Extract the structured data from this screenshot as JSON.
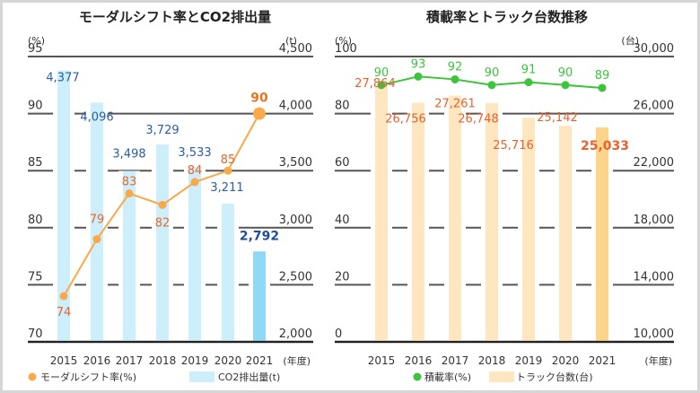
{
  "chart_data": [
    {
      "type": "bar+line",
      "title": "モーダルシフト率とCO2排出量",
      "categories": [
        "2015",
        "2016",
        "2017",
        "2018",
        "2019",
        "2020",
        "2021"
      ],
      "x_unit": "(年度)",
      "left_axis": {
        "unit": "(%)",
        "ylim": [
          70,
          95
        ],
        "ticks": [
          70,
          75,
          80,
          85,
          90,
          95
        ]
      },
      "right_axis": {
        "unit": "(t)",
        "ylim": [
          2000,
          4500
        ],
        "ticks": [
          "2,000",
          "2,500",
          "3,000",
          "3,500",
          "4,000",
          "4,500"
        ],
        "tick_values": [
          2000,
          2500,
          3000,
          3500,
          4000,
          4500
        ]
      },
      "series": [
        {
          "name": "モーダルシフト率(%)",
          "type": "line",
          "axis": "left",
          "values": [
            74,
            79,
            83,
            82,
            84,
            85,
            90
          ],
          "labels": [
            "74",
            "79",
            "83",
            "82",
            "84",
            "85",
            "90"
          ],
          "color": "#f9a94a",
          "label_color": "#e8662a"
        },
        {
          "name": "CO2排出量(t)",
          "type": "bar",
          "axis": "right",
          "values": [
            4377,
            4096,
            3498,
            3729,
            3533,
            3211,
            2792
          ],
          "labels": [
            "4,377",
            "4,096",
            "3,498",
            "3,729",
            "3,533",
            "3,211",
            "2,792"
          ],
          "color": "#cdeefb",
          "highlight_color": "#8fd9f6",
          "label_color": "#2a5caa"
        }
      ],
      "grid": true,
      "legend": "bottom"
    },
    {
      "type": "bar+line",
      "title": "積載率とトラック台数推移",
      "categories": [
        "2015",
        "2016",
        "2017",
        "2018",
        "2019",
        "2020",
        "2021"
      ],
      "x_unit": "(年度)",
      "left_axis": {
        "unit": "(%)",
        "ylim": [
          0,
          100
        ],
        "ticks": [
          0,
          20,
          40,
          60,
          80,
          100
        ]
      },
      "right_axis": {
        "unit": "(台)",
        "ylim": [
          10000,
          30000
        ],
        "ticks": [
          "10,000",
          "14,000",
          "18,000",
          "22,000",
          "26,000",
          "30,000"
        ],
        "tick_values": [
          10000,
          14000,
          18000,
          22000,
          26000,
          30000
        ]
      },
      "series": [
        {
          "name": "積載率(%)",
          "type": "line",
          "axis": "left",
          "values": [
            90,
            93,
            92,
            90,
            91,
            90,
            89
          ],
          "labels": [
            "90",
            "93",
            "92",
            "90",
            "91",
            "90",
            "89"
          ],
          "color": "#3cc43c",
          "label_color": "#3cc43c"
        },
        {
          "name": "トラック台数(台)",
          "type": "bar",
          "axis": "right",
          "values": [
            27864,
            26756,
            27261,
            26748,
            25716,
            25142,
            25033
          ],
          "labels": [
            "27,864",
            "26,756",
            "27,261",
            "26,748",
            "25,716",
            "25,142",
            "25,033"
          ],
          "color": "#fde6c0",
          "highlight_color": "#fdd48c",
          "label_color": "#e8622a"
        }
      ],
      "grid": true,
      "legend": "bottom"
    }
  ]
}
